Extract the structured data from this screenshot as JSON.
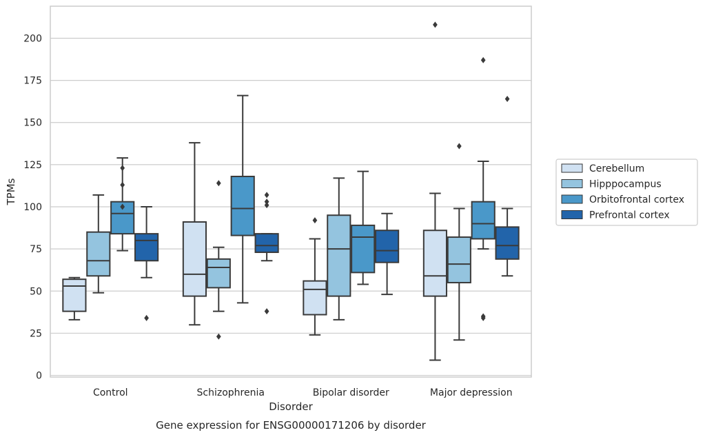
{
  "chart_data": {
    "type": "box",
    "title": "",
    "caption": "Gene expression for ENSG00000171206 by disorder",
    "xlabel": "Disorder",
    "ylabel": "TPMs",
    "ylim": [
      -1,
      219
    ],
    "yticks": [
      0,
      25,
      50,
      75,
      100,
      125,
      150,
      175,
      200
    ],
    "grid": "horizontal",
    "legend_position": "right",
    "categories": [
      "Control",
      "Schizophrenia",
      "Bipolar disorder",
      "Major depression"
    ],
    "series": [
      {
        "name": "Cerebellum",
        "color": "#d0e1f2",
        "boxes": [
          {
            "whislo": 33,
            "q1": 38,
            "median": 53,
            "q3": 57,
            "whishi": 58,
            "fliers": []
          },
          {
            "whislo": 30,
            "q1": 47,
            "median": 60,
            "q3": 91,
            "whishi": 138,
            "fliers": []
          },
          {
            "whislo": 24,
            "q1": 36,
            "median": 51,
            "q3": 56,
            "whishi": 81,
            "fliers": [
              92
            ]
          },
          {
            "whislo": 9,
            "q1": 47,
            "median": 59,
            "q3": 86,
            "whishi": 108,
            "fliers": [
              208
            ]
          }
        ]
      },
      {
        "name": "Hipppocampus",
        "color": "#94c4df",
        "boxes": [
          {
            "whislo": 49,
            "q1": 59,
            "median": 68,
            "q3": 85,
            "whishi": 107,
            "fliers": []
          },
          {
            "whislo": 38,
            "q1": 52,
            "median": 64,
            "q3": 69,
            "whishi": 76,
            "fliers": [
              23,
              114
            ]
          },
          {
            "whislo": 33,
            "q1": 47,
            "median": 75,
            "q3": 95,
            "whishi": 117,
            "fliers": []
          },
          {
            "whislo": 21,
            "q1": 55,
            "median": 66,
            "q3": 82,
            "whishi": 99,
            "fliers": [
              136
            ]
          }
        ]
      },
      {
        "name": "Orbitofrontal cortex",
        "color": "#4a98c9",
        "boxes": [
          {
            "whislo": 74,
            "q1": 84,
            "median": 96,
            "q3": 103,
            "whishi": 129,
            "fliers": [
              100,
              113,
              123
            ]
          },
          {
            "whislo": 43,
            "q1": 83,
            "median": 99,
            "q3": 118,
            "whishi": 166,
            "fliers": []
          },
          {
            "whislo": 54,
            "q1": 61,
            "median": 82,
            "q3": 89,
            "whishi": 121,
            "fliers": []
          },
          {
            "whislo": 75,
            "q1": 81,
            "median": 90,
            "q3": 103,
            "whishi": 127,
            "fliers": [
              34,
              35,
              187
            ]
          }
        ]
      },
      {
        "name": "Prefrontal cortex",
        "color": "#2264aa",
        "boxes": [
          {
            "whislo": 58,
            "q1": 68,
            "median": 80,
            "q3": 84,
            "whishi": 100,
            "fliers": [
              34
            ]
          },
          {
            "whislo": 68,
            "q1": 73,
            "median": 77,
            "q3": 84,
            "whishi": 84,
            "fliers": [
              38,
              101,
              103,
              107
            ]
          },
          {
            "whislo": 48,
            "q1": 67,
            "median": 74,
            "q3": 86,
            "whishi": 96,
            "fliers": []
          },
          {
            "whislo": 59,
            "q1": 69,
            "median": 77,
            "q3": 88,
            "whishi": 99,
            "fliers": [
              164
            ]
          }
        ]
      }
    ]
  },
  "style": {
    "box_edge_color": "#3a3a3a",
    "grid_color": "#cccccc",
    "frame_color": "#cccccc",
    "text_color": "#262626"
  }
}
